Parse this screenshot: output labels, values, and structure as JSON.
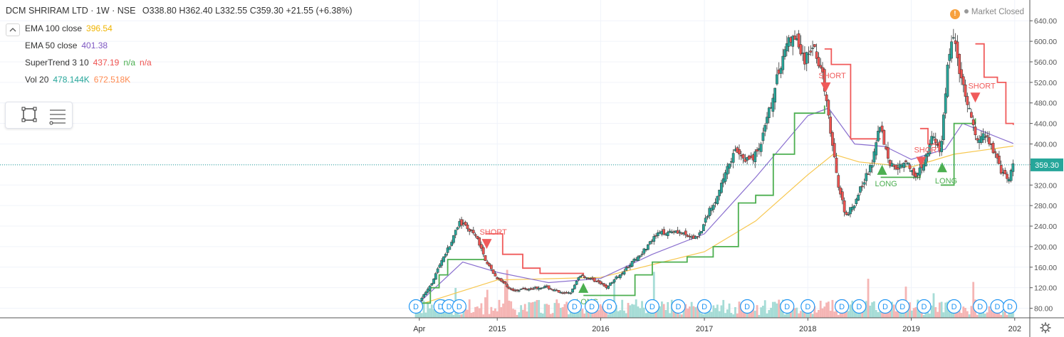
{
  "header": {
    "title": "DCM SHRIRAM LTD · 1W · NSE",
    "ohlc": "O338.80 H362.40 L332.55 C359.30 +21.55 (+6.38%)",
    "collapse_icon": "chevron-up-icon"
  },
  "indicators": [
    {
      "label": "EMA 100 close",
      "values": [
        "396.54"
      ],
      "colors": [
        "#f0b400"
      ]
    },
    {
      "label": "EMA 50 close",
      "values": [
        "401.38"
      ],
      "colors": [
        "#7e57c2"
      ]
    },
    {
      "label": "SuperTrend 3 10",
      "values": [
        "437.19",
        "n/a",
        "n/a"
      ],
      "colors": [
        "#ef5350",
        "#4caf50",
        "#ef5350"
      ]
    },
    {
      "label": "Vol 20",
      "values": [
        "478.144K",
        "672.518K"
      ],
      "colors": [
        "#26a69a",
        "#ff8a50"
      ]
    }
  ],
  "toolbar": {
    "icons": [
      "rectangle-select-icon",
      "list-settings-icon"
    ]
  },
  "status": {
    "alert_glyph": "!",
    "label": "Market Closed"
  },
  "colors": {
    "up": "#26a69a",
    "down": "#ef5350",
    "ema100": "#f7c74f",
    "ema50": "#8a6fcf",
    "st_up": "#4caf50",
    "st_down": "#f05a5a",
    "price_tag": "#26a69a"
  },
  "chart_data": {
    "type": "candlestick",
    "symbol": "DCM SHRIRAM LTD",
    "interval": "1W",
    "exchange": "NSE",
    "x_labels": [
      "Apr",
      "2015",
      "2016",
      "2017",
      "2018",
      "2019",
      "202"
    ],
    "y_ticks": [
      80,
      120,
      160,
      200,
      240,
      280,
      320,
      360,
      400,
      440,
      480,
      520,
      560,
      600,
      640
    ],
    "ylim": [
      60,
      650
    ],
    "last_price": 359.3,
    "last_price_label": "359.30",
    "price_path": [
      [
        "2014-03-20",
        85
      ],
      [
        "2014-04-10",
        100
      ],
      [
        "2014-05-15",
        130
      ],
      [
        "2014-06-20",
        175
      ],
      [
        "2014-07-25",
        210
      ],
      [
        "2014-08-20",
        248
      ],
      [
        "2014-09-20",
        235
      ],
      [
        "2014-10-20",
        218
      ],
      [
        "2014-11-20",
        175
      ],
      [
        "2014-12-20",
        145
      ],
      [
        "2015-01-20",
        130
      ],
      [
        "2015-02-20",
        115
      ],
      [
        "2015-04-20",
        118
      ],
      [
        "2015-06-20",
        122
      ],
      [
        "2015-08-20",
        108
      ],
      [
        "2015-09-20",
        112
      ],
      [
        "2015-10-20",
        145
      ],
      [
        "2015-12-20",
        132
      ],
      [
        "2016-01-20",
        120
      ],
      [
        "2016-03-20",
        152
      ],
      [
        "2016-05-20",
        185
      ],
      [
        "2016-07-20",
        225
      ],
      [
        "2016-09-20",
        232
      ],
      [
        "2016-11-20",
        215
      ],
      [
        "2016-12-20",
        228
      ],
      [
        "2017-01-20",
        275
      ],
      [
        "2017-02-20",
        300
      ],
      [
        "2017-03-20",
        355
      ],
      [
        "2017-04-20",
        385
      ],
      [
        "2017-05-20",
        370
      ],
      [
        "2017-06-20",
        372
      ],
      [
        "2017-07-20",
        400
      ],
      [
        "2017-08-20",
        470
      ],
      [
        "2017-09-20",
        540
      ],
      [
        "2017-10-20",
        600
      ],
      [
        "2017-11-20",
        605
      ],
      [
        "2017-12-20",
        560
      ],
      [
        "2018-01-20",
        595
      ],
      [
        "2018-02-20",
        540
      ],
      [
        "2018-03-15",
        450
      ],
      [
        "2018-04-15",
        330
      ],
      [
        "2018-05-15",
        260
      ],
      [
        "2018-06-15",
        285
      ],
      [
        "2018-07-15",
        325
      ],
      [
        "2018-08-15",
        360
      ],
      [
        "2018-09-10",
        445
      ],
      [
        "2018-10-15",
        362
      ],
      [
        "2018-11-15",
        355
      ],
      [
        "2018-12-15",
        370
      ],
      [
        "2019-01-15",
        330
      ],
      [
        "2019-02-15",
        365
      ],
      [
        "2019-03-15",
        415
      ],
      [
        "2019-04-15",
        385
      ],
      [
        "2019-05-10",
        560
      ],
      [
        "2019-06-01",
        615
      ],
      [
        "2019-06-25",
        525
      ],
      [
        "2019-07-20",
        480
      ],
      [
        "2019-08-20",
        405
      ],
      [
        "2019-09-20",
        420
      ],
      [
        "2019-10-20",
        385
      ],
      [
        "2019-11-20",
        340
      ],
      [
        "2019-12-10",
        330
      ],
      [
        "2019-12-27",
        359
      ]
    ],
    "ema_100_path": [
      [
        "2014-03-20",
        85
      ],
      [
        "2015-01-01",
        135
      ],
      [
        "2016-01-01",
        140
      ],
      [
        "2017-01-01",
        190
      ],
      [
        "2017-07-01",
        250
      ],
      [
        "2018-01-01",
        340
      ],
      [
        "2018-04-01",
        380
      ],
      [
        "2018-07-01",
        365
      ],
      [
        "2019-01-01",
        355
      ],
      [
        "2019-06-01",
        380
      ],
      [
        "2019-12-27",
        396
      ]
    ],
    "ema_50_path": [
      [
        "2014-03-20",
        85
      ],
      [
        "2014-09-01",
        170
      ],
      [
        "2015-01-01",
        150
      ],
      [
        "2015-07-01",
        130
      ],
      [
        "2016-01-01",
        138
      ],
      [
        "2016-07-01",
        185
      ],
      [
        "2017-01-01",
        225
      ],
      [
        "2017-07-01",
        335
      ],
      [
        "2018-01-01",
        455
      ],
      [
        "2018-03-15",
        470
      ],
      [
        "2018-06-15",
        400
      ],
      [
        "2018-10-01",
        395
      ],
      [
        "2019-01-01",
        370
      ],
      [
        "2019-05-01",
        390
      ],
      [
        "2019-07-01",
        440
      ],
      [
        "2019-10-01",
        420
      ],
      [
        "2019-12-27",
        401
      ]
    ],
    "supertrend_segments": [
      {
        "dir": "up",
        "points": [
          [
            "2014-03-20",
            90
          ],
          [
            "2014-05-10",
            120
          ],
          [
            "2014-06-10",
            145
          ],
          [
            "2014-07-10",
            175
          ],
          [
            "2014-09-01",
            175
          ],
          [
            "2014-11-20",
            175
          ]
        ]
      },
      {
        "dir": "down",
        "points": [
          [
            "2014-11-20",
            225
          ],
          [
            "2015-01-20",
            185
          ],
          [
            "2015-04-01",
            158
          ],
          [
            "2015-06-01",
            148
          ],
          [
            "2015-09-01",
            148
          ],
          [
            "2015-11-01",
            145
          ]
        ]
      },
      {
        "dir": "up",
        "points": [
          [
            "2015-11-01",
            105
          ],
          [
            "2016-03-15",
            105
          ],
          [
            "2016-05-01",
            145
          ],
          [
            "2016-07-01",
            170
          ],
          [
            "2016-11-01",
            180
          ],
          [
            "2017-02-01",
            200
          ],
          [
            "2017-05-01",
            285
          ],
          [
            "2017-07-01",
            300
          ],
          [
            "2017-09-01",
            380
          ],
          [
            "2017-11-15",
            460
          ],
          [
            "2018-03-01",
            475
          ]
        ]
      },
      {
        "dir": "down",
        "points": [
          [
            "2018-03-01",
            585
          ],
          [
            "2018-03-25",
            555
          ],
          [
            "2018-06-01",
            410
          ],
          [
            "2018-09-15",
            410
          ]
        ]
      },
      {
        "dir": "up",
        "points": [
          [
            "2018-09-15",
            335
          ],
          [
            "2019-01-01",
            335
          ],
          [
            "2019-02-01",
            340
          ]
        ]
      },
      {
        "dir": "down",
        "points": [
          [
            "2019-02-01",
            430
          ],
          [
            "2019-03-01",
            400
          ],
          [
            "2019-04-15",
            395
          ]
        ]
      },
      {
        "dir": "up",
        "points": [
          [
            "2019-04-15",
            320
          ],
          [
            "2019-06-01",
            440
          ],
          [
            "2019-08-15",
            450
          ]
        ]
      },
      {
        "dir": "down",
        "points": [
          [
            "2019-08-15",
            595
          ],
          [
            "2019-09-15",
            530
          ],
          [
            "2019-11-01",
            520
          ],
          [
            "2019-12-01",
            440
          ],
          [
            "2019-12-27",
            437
          ]
        ]
      }
    ],
    "signals": [
      {
        "label": "SHORT",
        "date": "2014-11-25",
        "price": 215,
        "dir": "down"
      },
      {
        "label": "LONG",
        "date": "2015-11-01",
        "price": 110,
        "dir": "up"
      },
      {
        "label": "SHORT",
        "date": "2018-03-05",
        "price": 520,
        "dir": "down"
      },
      {
        "label": "LONG",
        "date": "2018-09-20",
        "price": 340,
        "dir": "up"
      },
      {
        "label": "SHORT",
        "date": "2019-02-05",
        "price": 375,
        "dir": "down"
      },
      {
        "label": "LONG",
        "date": "2019-04-20",
        "price": 345,
        "dir": "up"
      },
      {
        "label": "SHORT",
        "date": "2019-08-15",
        "price": 500,
        "dir": "down"
      }
    ],
    "dividend_markers": {
      "glyph": "D",
      "dates": [
        "2014-03-20",
        "2014-06-15",
        "2014-07-15",
        "2014-08-20",
        "2015-10-01",
        "2015-12-01",
        "2016-02-01",
        "2016-07-01",
        "2016-10-01",
        "2017-01-01",
        "2017-06-01",
        "2017-10-20",
        "2018-01-01",
        "2018-05-01",
        "2018-07-01",
        "2018-10-01",
        "2018-12-01",
        "2019-02-15",
        "2019-06-01",
        "2019-09-01",
        "2019-11-01",
        "2019-12-15"
      ]
    }
  }
}
